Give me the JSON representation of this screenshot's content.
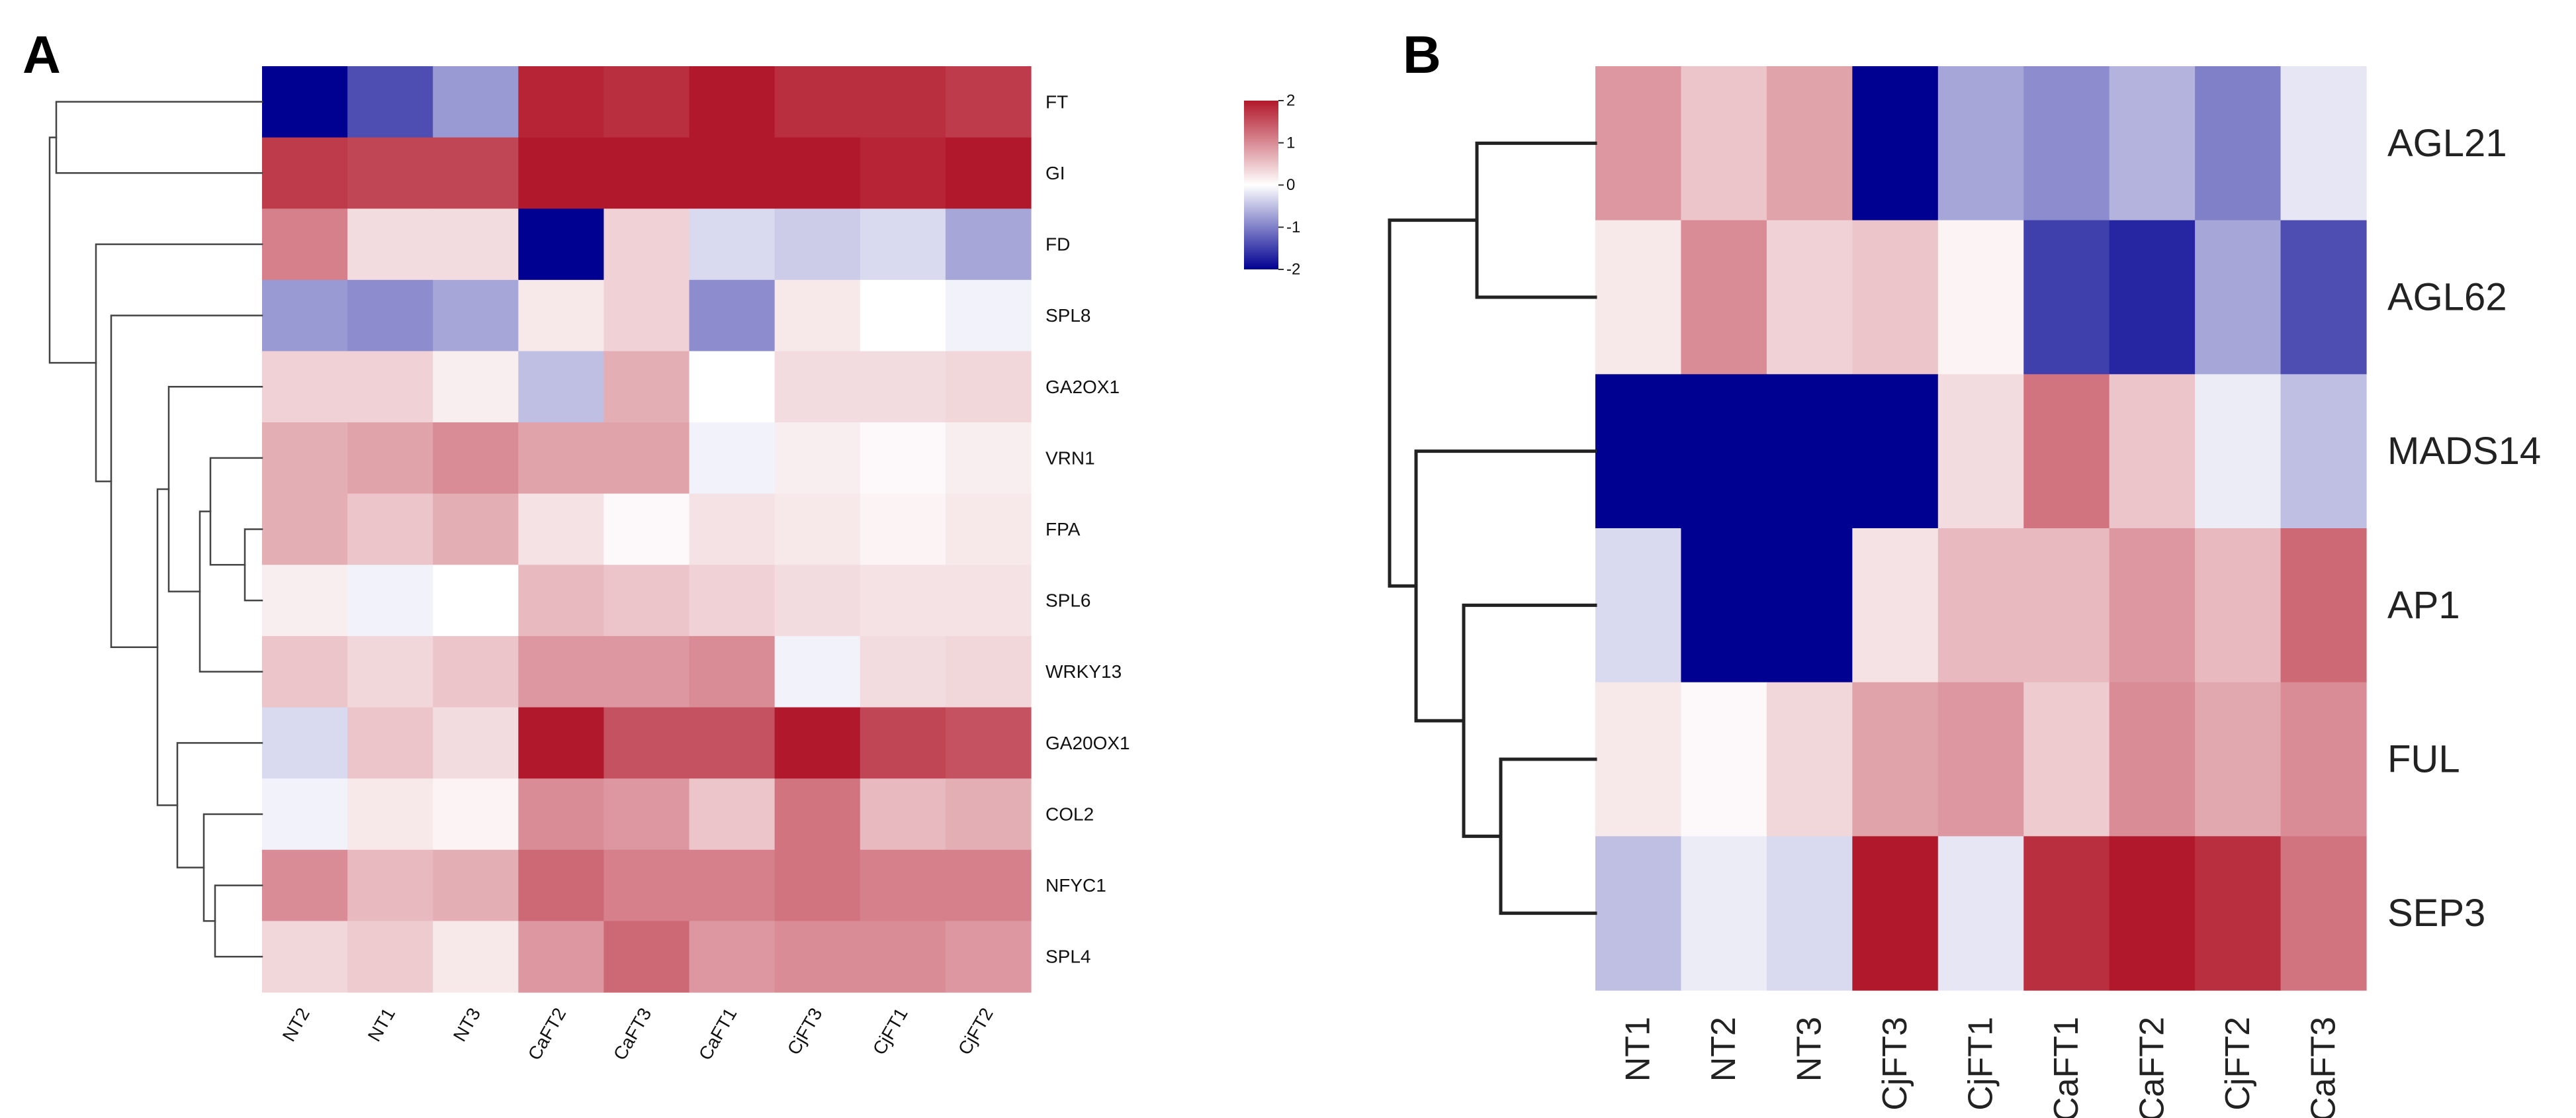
{
  "chart_data": [
    {
      "panel": "A",
      "type": "heatmap",
      "title": "",
      "panel_label": "A",
      "columns": [
        "NT2",
        "NT1",
        "NT3",
        "CaFT2",
        "CaFT3",
        "CaFT1",
        "CjFT3",
        "CjFT1",
        "CjFT2"
      ],
      "rows": [
        "FT",
        "GI",
        "FD",
        "SPL8",
        "GA2OX1",
        "VRN1",
        "FPA",
        "SPL6",
        "WRKY13",
        "GA20OX1",
        "COL2",
        "NFYC1",
        "SPL4"
      ],
      "values": [
        [
          -2.0,
          -1.4,
          -0.8,
          1.9,
          1.8,
          2.2,
          1.8,
          1.8,
          1.7
        ],
        [
          1.7,
          1.6,
          1.6,
          2.0,
          2.0,
          2.0,
          2.0,
          1.9,
          2.0
        ],
        [
          1.1,
          0.3,
          0.3,
          -2.0,
          0.4,
          -0.3,
          -0.4,
          -0.3,
          -0.7
        ],
        [
          -0.8,
          -0.9,
          -0.7,
          0.2,
          0.4,
          -0.9,
          0.2,
          0.0,
          -0.1
        ],
        [
          0.4,
          0.4,
          0.15,
          -0.5,
          0.7,
          0.0,
          0.3,
          0.3,
          0.35
        ],
        [
          0.7,
          0.8,
          1.0,
          0.8,
          0.8,
          -0.1,
          0.15,
          0.05,
          0.15
        ],
        [
          0.7,
          0.5,
          0.7,
          0.25,
          0.05,
          0.25,
          0.2,
          0.1,
          0.2
        ],
        [
          0.15,
          -0.1,
          0.0,
          0.6,
          0.5,
          0.4,
          0.3,
          0.25,
          0.25
        ],
        [
          0.5,
          0.35,
          0.5,
          0.9,
          0.9,
          1.0,
          -0.1,
          0.3,
          0.35
        ],
        [
          -0.3,
          0.5,
          0.3,
          2.0,
          1.5,
          1.5,
          2.1,
          1.6,
          1.5
        ],
        [
          -0.1,
          0.2,
          0.1,
          1.0,
          0.9,
          0.5,
          1.2,
          0.6,
          0.7
        ],
        [
          1.0,
          0.6,
          0.7,
          1.3,
          1.1,
          1.1,
          1.2,
          1.1,
          1.1
        ],
        [
          0.35,
          0.45,
          0.2,
          0.9,
          1.3,
          0.9,
          1.0,
          1.0,
          0.9
        ]
      ],
      "legend": {
        "ticks": [
          2,
          1,
          0,
          -1,
          -2
        ],
        "range": [
          -2,
          2
        ],
        "low_color": "#000091",
        "mid_color": "#ffffff",
        "high_color": "#b2182b"
      },
      "dendrogram_side": "left"
    },
    {
      "panel": "B",
      "type": "heatmap",
      "title": "",
      "panel_label": "B",
      "columns": [
        "NT1",
        "NT2",
        "NT3",
        "CjFT3",
        "CjFT1",
        "CaFT1",
        "CaFT2",
        "CjFT2",
        "CaFT3"
      ],
      "rows": [
        "AGL21",
        "AGL62",
        "MADS14",
        "AP1",
        "FUL",
        "SEP3"
      ],
      "values": [
        [
          0.9,
          0.5,
          0.8,
          -2.0,
          -0.7,
          -0.9,
          -0.6,
          -1.0,
          -0.2
        ],
        [
          0.2,
          1.0,
          0.4,
          0.5,
          0.1,
          -1.5,
          -1.7,
          -0.7,
          -1.4
        ],
        [
          -2.0,
          -2.0,
          -2.0,
          -2.0,
          0.3,
          1.2,
          0.5,
          -0.15,
          -0.5
        ],
        [
          -0.3,
          -2.0,
          -2.0,
          0.25,
          0.6,
          0.6,
          0.9,
          0.6,
          1.3
        ],
        [
          0.2,
          0.05,
          0.35,
          0.8,
          0.9,
          0.45,
          1.0,
          0.75,
          1.0
        ],
        [
          -0.5,
          -0.15,
          -0.3,
          2.0,
          -0.2,
          1.8,
          2.1,
          1.8,
          1.2
        ]
      ],
      "legend": {
        "range": [
          -2,
          2
        ],
        "low_color": "#000091",
        "mid_color": "#ffffff",
        "high_color": "#b2182b"
      },
      "dendrogram_side": "left"
    }
  ]
}
